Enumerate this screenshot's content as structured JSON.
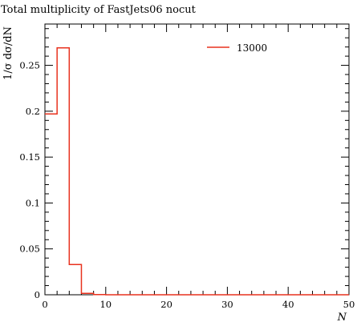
{
  "chart_data": {
    "type": "line",
    "title": "Total multiplicity of FastJets06 nocut",
    "xlabel": "N",
    "ylabel": "1/σ dσ/dN",
    "xlim": [
      0,
      50
    ],
    "ylim": [
      0,
      0.295
    ],
    "x_ticks": [
      0,
      10,
      20,
      30,
      40,
      50
    ],
    "y_ticks": [
      0,
      0.05,
      0.1,
      0.15,
      0.2,
      0.25
    ],
    "grid": false,
    "legend_position": "top-right",
    "series": [
      {
        "name": "13000",
        "color": "#e8321e",
        "step": "histogram",
        "bin_edges": [
          0,
          2,
          4,
          6,
          8,
          10,
          12,
          14,
          16,
          18,
          20,
          22,
          24,
          26,
          28,
          30,
          32,
          34,
          36,
          38,
          40,
          42,
          44,
          46,
          48,
          50
        ],
        "values": [
          0.197,
          0.269,
          0.033,
          0.0015,
          0.0002,
          0,
          0,
          0,
          0,
          0,
          0,
          0,
          0,
          0,
          0,
          0,
          0,
          0,
          0,
          0,
          0,
          0,
          0,
          0,
          0
        ]
      }
    ]
  }
}
